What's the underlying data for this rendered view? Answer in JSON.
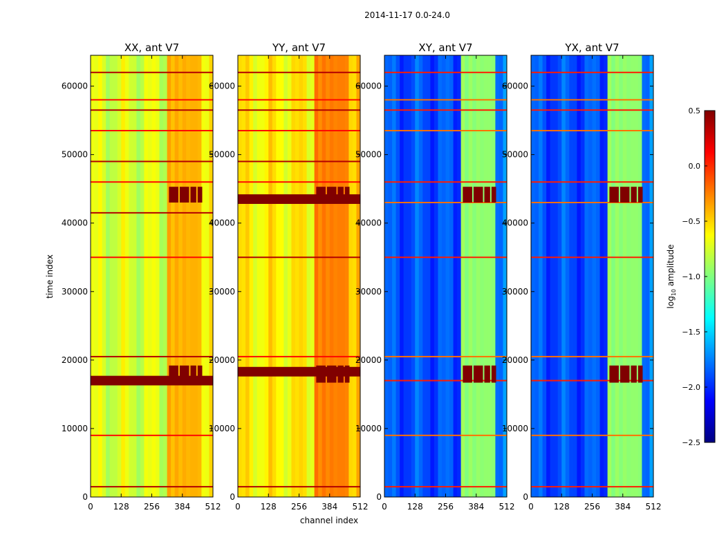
{
  "figure": {
    "suptitle": "2014-11-17 0.0-24.0",
    "xlabel": "channel index",
    "ylabel": "time index"
  },
  "chart_data": {
    "type": "heatmap",
    "suptitle": "2014-11-17 0.0-24.0",
    "x_label": "channel index",
    "y_label": "time index",
    "x_range": [
      0,
      512
    ],
    "y_range": [
      0,
      64500
    ],
    "x_ticks": [
      0,
      128,
      256,
      384,
      512
    ],
    "y_ticks": [
      0,
      10000,
      20000,
      30000,
      40000,
      50000,
      60000
    ],
    "colorbar": {
      "label": "log10 amplitude",
      "label_main": "log",
      "label_sub": "10",
      "label_rest": " amplitude",
      "range": [
        -2.5,
        0.5
      ],
      "ticks": [
        0.5,
        0.0,
        -0.5,
        -1.0,
        -1.5,
        -2.0,
        -2.5
      ],
      "tick_labels": [
        "0.5",
        "0.0",
        "−0.5",
        "−1.0",
        "−1.5",
        "−2.0",
        "−2.5"
      ],
      "colormap": "jet"
    },
    "panels": [
      {
        "title": "XX, ant V7",
        "background_level": -0.75,
        "block_level": 0.5,
        "wide_band_rows": [
          17000
        ],
        "narrow_band_rows": [
          1500,
          9000,
          20500,
          35000,
          41500,
          46000,
          49000,
          53500,
          56500,
          58000,
          62000
        ]
      },
      {
        "title": "YY, ant V7",
        "background_level": -0.6,
        "block_level": 0.5,
        "wide_band_rows": [
          18300,
          43500
        ],
        "narrow_band_rows": [
          1500,
          20500,
          35000,
          46000,
          49000,
          53500,
          56500,
          58000,
          62000
        ]
      },
      {
        "title": "XY, ant V7",
        "background_level": -1.9,
        "block_level": 0.5,
        "wide_band_rows": [],
        "narrow_band_rows": [
          1500,
          9000,
          17000,
          20500,
          35000,
          43000,
          46000,
          53500,
          56500,
          58000,
          62000
        ]
      },
      {
        "title": "YX, ant V7",
        "background_level": -1.9,
        "block_level": 0.5,
        "wide_band_rows": [],
        "narrow_band_rows": [
          1500,
          9000,
          17000,
          20500,
          35000,
          43000,
          46000,
          53500,
          56500,
          58000,
          62000
        ]
      }
    ],
    "rfi_channel_range": [
      325,
      470
    ],
    "rfi_blocks_time_ranges": [
      [
        16700,
        19200
      ],
      [
        43000,
        45300
      ]
    ],
    "rfi_block_channel_ranges": [
      [
        325,
        370
      ],
      [
        370,
        415
      ],
      [
        415,
        445
      ],
      [
        445,
        470
      ]
    ]
  }
}
